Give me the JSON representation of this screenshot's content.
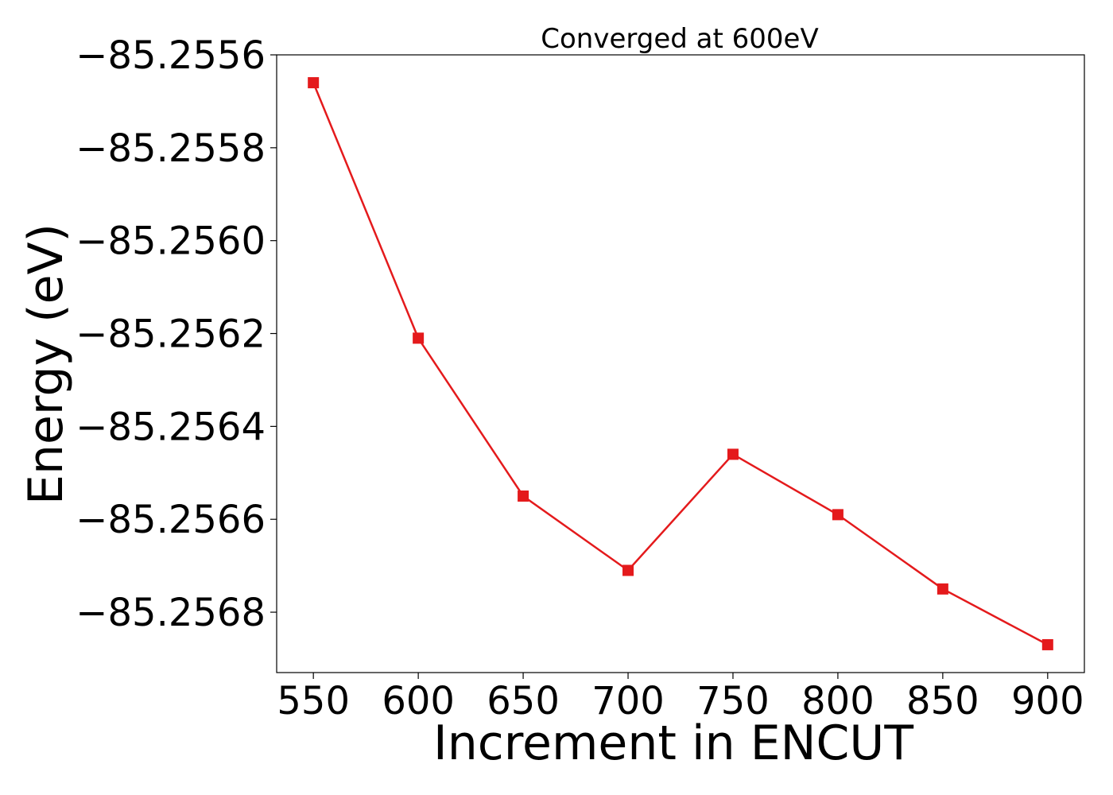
{
  "chart_data": {
    "type": "line",
    "title": "Converged at 600eV",
    "xlabel": "Increment in ENCUT",
    "ylabel": "Energy (eV)",
    "x": [
      550,
      600,
      650,
      700,
      750,
      800,
      850,
      900
    ],
    "series": [
      {
        "values": [
          -85.25566,
          -85.25621,
          -85.25655,
          -85.25671,
          -85.25646,
          -85.25659,
          -85.25675,
          -85.25687
        ],
        "color": "#e41a1c",
        "marker": "square"
      }
    ],
    "xlim": [
      532.5,
      917.5
    ],
    "ylim": [
      -85.25693,
      -85.2556
    ],
    "xticks": [
      550,
      600,
      650,
      700,
      750,
      800,
      850,
      900
    ],
    "xtick_labels": [
      "550",
      "600",
      "650",
      "700",
      "750",
      "800",
      "850",
      "900"
    ],
    "yticks": [
      -85.2556,
      -85.2558,
      -85.256,
      -85.2562,
      -85.2564,
      -85.2566,
      -85.2568
    ],
    "ytick_labels": [
      "−85.2556",
      "−85.2558",
      "−85.2560",
      "−85.2562",
      "−85.2564",
      "−85.2566",
      "−85.2568"
    ],
    "grid": false,
    "legend": "none"
  }
}
